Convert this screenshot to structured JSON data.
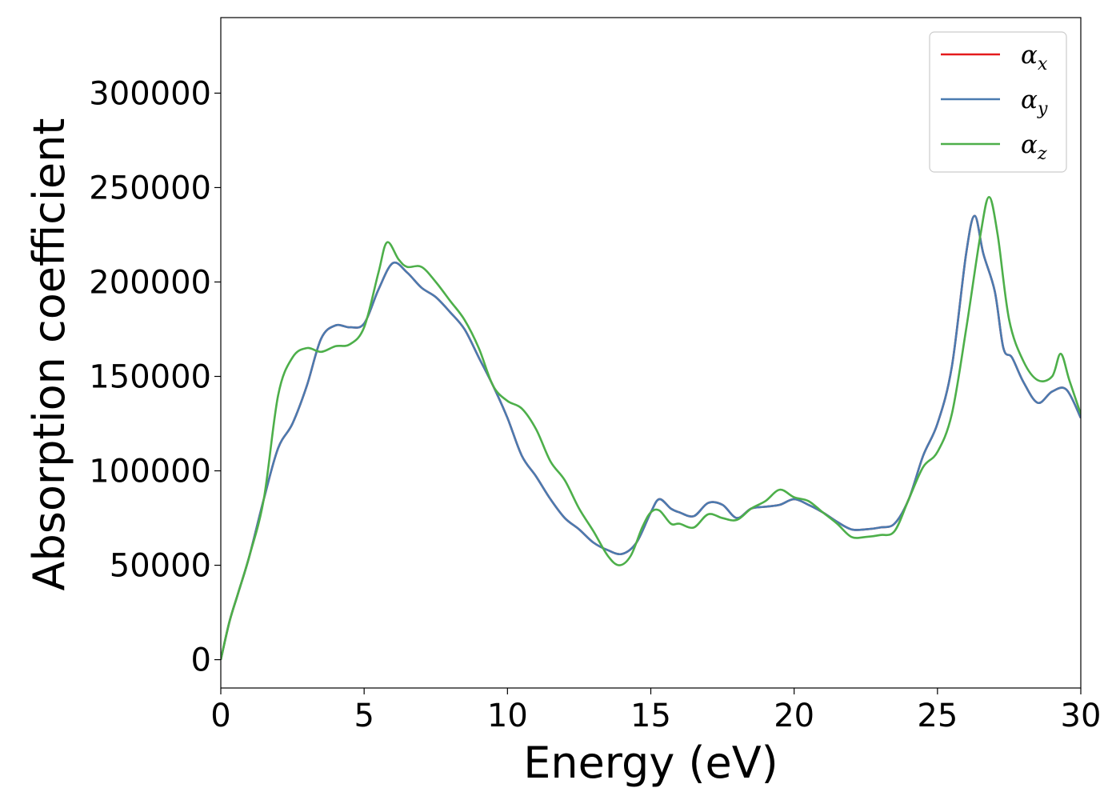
{
  "chart_data": {
    "type": "line",
    "title": "",
    "xlabel": "Energy (eV)",
    "ylabel": "Absorption coefficient",
    "xlim": [
      0,
      30
    ],
    "ylim": [
      -15000,
      340000
    ],
    "xticks": [
      0,
      5,
      10,
      15,
      20,
      25,
      30
    ],
    "yticks": [
      0,
      50000,
      100000,
      150000,
      200000,
      250000,
      300000
    ],
    "grid": false,
    "legend_position": "top-right",
    "series": [
      {
        "name": "α_x",
        "symbol": "α",
        "subscript": "x",
        "color": "#e41a1c",
        "x": [
          0,
          0.3,
          0.6,
          1.0,
          1.5,
          2.0,
          2.5,
          3.0,
          3.5,
          4.0,
          4.5,
          5.0,
          5.5,
          6.0,
          6.5,
          7.0,
          7.5,
          8.0,
          8.5,
          9.0,
          9.5,
          10.0,
          10.5,
          11.0,
          11.5,
          12.0,
          12.5,
          13.0,
          13.5,
          14.0,
          14.5,
          15.0,
          15.3,
          15.7,
          16.0,
          16.5,
          17.0,
          17.5,
          18.0,
          18.5,
          19.0,
          19.5,
          20.0,
          20.5,
          21.0,
          21.5,
          22.0,
          22.5,
          23.0,
          23.5,
          24.0,
          24.5,
          25.0,
          25.5,
          26.0,
          26.3,
          26.6,
          27.0,
          27.3,
          27.6,
          28.0,
          28.5,
          29.0,
          29.5,
          30.0
        ],
        "y": [
          0,
          20000,
          35000,
          55000,
          85000,
          112000,
          125000,
          145000,
          170000,
          177000,
          176000,
          178000,
          196000,
          210000,
          205000,
          197000,
          192000,
          184000,
          175000,
          160000,
          145000,
          128000,
          108000,
          97000,
          85000,
          75000,
          69000,
          62000,
          58000,
          56000,
          62000,
          78000,
          85000,
          80000,
          78000,
          76000,
          83000,
          82000,
          75000,
          80000,
          81000,
          82000,
          85000,
          82000,
          78000,
          73000,
          69000,
          69000,
          70000,
          72000,
          85000,
          108000,
          125000,
          155000,
          215000,
          235000,
          215000,
          195000,
          165000,
          160000,
          147000,
          136000,
          142000,
          143000,
          128000
        ]
      },
      {
        "name": "α_y",
        "symbol": "α",
        "subscript": "y",
        "color": "#4a7bb0",
        "x": [
          0,
          0.3,
          0.6,
          1.0,
          1.5,
          2.0,
          2.5,
          3.0,
          3.5,
          4.0,
          4.5,
          5.0,
          5.5,
          6.0,
          6.5,
          7.0,
          7.5,
          8.0,
          8.5,
          9.0,
          9.5,
          10.0,
          10.5,
          11.0,
          11.5,
          12.0,
          12.5,
          13.0,
          13.5,
          14.0,
          14.5,
          15.0,
          15.3,
          15.7,
          16.0,
          16.5,
          17.0,
          17.5,
          18.0,
          18.5,
          19.0,
          19.5,
          20.0,
          20.5,
          21.0,
          21.5,
          22.0,
          22.5,
          23.0,
          23.5,
          24.0,
          24.5,
          25.0,
          25.5,
          26.0,
          26.3,
          26.6,
          27.0,
          27.3,
          27.6,
          28.0,
          28.5,
          29.0,
          29.5,
          30.0
        ],
        "y": [
          0,
          20000,
          35000,
          55000,
          85000,
          112000,
          125000,
          145000,
          170000,
          177000,
          176000,
          178000,
          196000,
          210000,
          205000,
          197000,
          192000,
          184000,
          175000,
          160000,
          145000,
          128000,
          108000,
          97000,
          85000,
          75000,
          69000,
          62000,
          58000,
          56000,
          62000,
          78000,
          85000,
          80000,
          78000,
          76000,
          83000,
          82000,
          75000,
          80000,
          81000,
          82000,
          85000,
          82000,
          78000,
          73000,
          69000,
          69000,
          70000,
          72000,
          85000,
          108000,
          125000,
          155000,
          215000,
          235000,
          215000,
          195000,
          165000,
          160000,
          147000,
          136000,
          142000,
          143000,
          128000
        ]
      },
      {
        "name": "α_z",
        "symbol": "α",
        "subscript": "z",
        "color": "#4daf4a",
        "x": [
          0,
          0.3,
          0.6,
          1.0,
          1.5,
          2.0,
          2.5,
          3.0,
          3.5,
          4.0,
          4.5,
          5.0,
          5.5,
          5.8,
          6.2,
          6.5,
          7.0,
          7.5,
          8.0,
          8.5,
          9.0,
          9.5,
          10.0,
          10.5,
          11.0,
          11.5,
          12.0,
          12.5,
          13.0,
          13.5,
          13.9,
          14.3,
          14.7,
          15.0,
          15.3,
          15.7,
          16.0,
          16.5,
          17.0,
          17.5,
          18.0,
          18.5,
          19.0,
          19.5,
          20.0,
          20.5,
          21.0,
          21.5,
          22.0,
          22.5,
          23.0,
          23.5,
          24.0,
          24.5,
          25.0,
          25.5,
          26.0,
          26.5,
          26.8,
          27.1,
          27.5,
          28.0,
          28.5,
          29.0,
          29.3,
          29.6,
          30.0
        ],
        "y": [
          0,
          20000,
          35000,
          55000,
          85000,
          140000,
          160000,
          165000,
          163000,
          166000,
          167000,
          176000,
          205000,
          221000,
          212000,
          208000,
          208000,
          200000,
          190000,
          180000,
          165000,
          145000,
          137000,
          133000,
          122000,
          105000,
          95000,
          80000,
          68000,
          55000,
          50000,
          55000,
          70000,
          78000,
          79000,
          72000,
          72000,
          70000,
          77000,
          75000,
          74000,
          80000,
          84000,
          90000,
          86000,
          84000,
          78000,
          72000,
          65000,
          65000,
          66000,
          68000,
          85000,
          102000,
          110000,
          130000,
          175000,
          225000,
          245000,
          225000,
          180000,
          158000,
          148000,
          150000,
          162000,
          148000,
          130000
        ]
      }
    ]
  }
}
